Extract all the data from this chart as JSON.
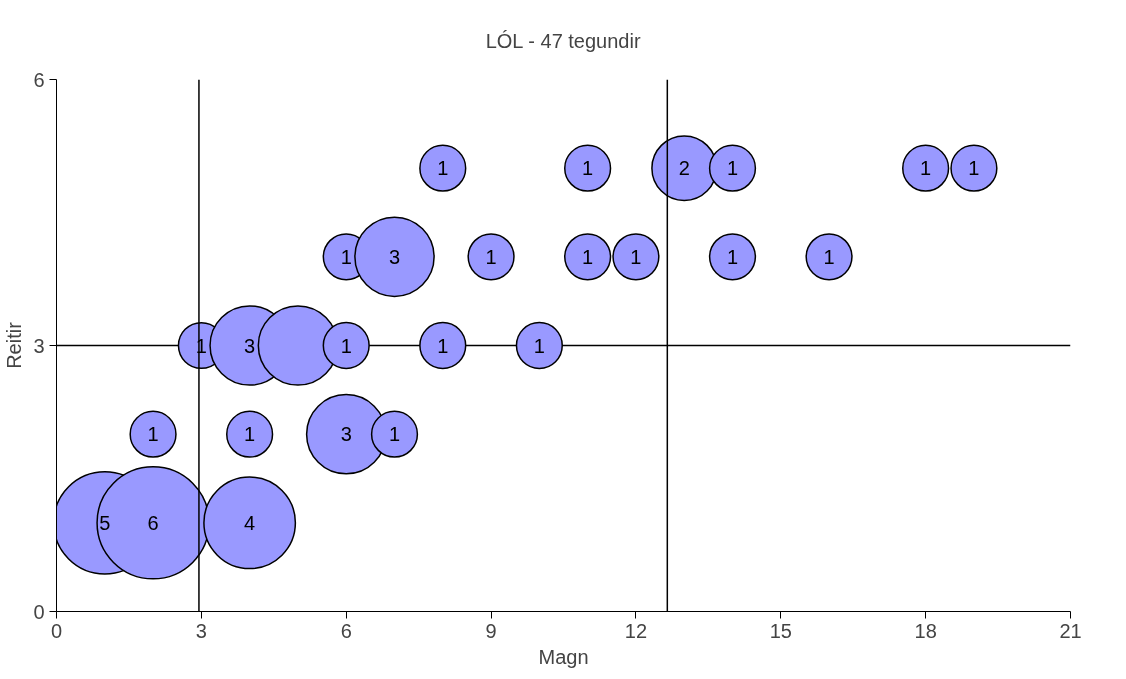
{
  "chart_data": {
    "type": "bubble",
    "title": "LÓL - 47 tegundir",
    "xlabel": "Magn",
    "ylabel": "Reitir",
    "x": [
      1,
      2,
      4,
      2,
      4,
      6,
      7,
      3,
      4,
      5,
      6,
      8,
      10,
      6,
      7,
      9,
      11,
      12,
      14,
      16,
      8,
      11,
      13,
      14,
      18,
      19
    ],
    "values": [
      1,
      1,
      1,
      2,
      2,
      2,
      2,
      3,
      3,
      3,
      3,
      3,
      3,
      4,
      4,
      4,
      4,
      4,
      4,
      4,
      5,
      5,
      5,
      5,
      5,
      5
    ],
    "sizes": [
      0.833,
      1,
      0.667,
      0.167,
      0.167,
      0.5,
      0.167,
      0.167,
      0.5,
      0.5,
      0.167,
      0.167,
      0.167,
      0.167,
      0.5,
      0.167,
      0.167,
      0.167,
      0.167,
      0.167,
      0.167,
      0.167,
      0.333,
      0.167,
      0.167,
      0.167
    ],
    "annotations": [
      {
        "text": "5",
        "x": 1,
        "y": 1
      },
      {
        "text": "6",
        "x": 2,
        "y": 1
      },
      {
        "text": "4",
        "x": 4,
        "y": 1
      },
      {
        "text": "1",
        "x": 2,
        "y": 2
      },
      {
        "text": "1",
        "x": 4,
        "y": 2
      },
      {
        "text": "3",
        "x": 6,
        "y": 2
      },
      {
        "text": "1",
        "x": 7,
        "y": 2
      },
      {
        "text": "1",
        "x": 3,
        "y": 3
      },
      {
        "text": "3",
        "x": 4,
        "y": 3
      },
      {
        "text": "1",
        "x": 6,
        "y": 3
      },
      {
        "text": "1",
        "x": 8,
        "y": 3
      },
      {
        "text": "1",
        "x": 10,
        "y": 3
      },
      {
        "text": "1",
        "x": 6,
        "y": 4
      },
      {
        "text": "3",
        "x": 7,
        "y": 4
      },
      {
        "text": "1",
        "x": 9,
        "y": 4
      },
      {
        "text": "1",
        "x": 11,
        "y": 4
      },
      {
        "text": "1",
        "x": 12,
        "y": 4
      },
      {
        "text": "1",
        "x": 14,
        "y": 4
      },
      {
        "text": "1",
        "x": 16,
        "y": 4
      },
      {
        "text": "1",
        "x": 8,
        "y": 5
      },
      {
        "text": "1",
        "x": 11,
        "y": 5
      },
      {
        "text": "2",
        "x": 13,
        "y": 5
      },
      {
        "text": "1",
        "x": 14,
        "y": 5
      },
      {
        "text": "1",
        "x": 18,
        "y": 5
      },
      {
        "text": "1",
        "x": 19,
        "y": 5
      }
    ],
    "color": "#9999ff",
    "xlim": [
      0,
      21
    ],
    "xticks": [
      0,
      3,
      6,
      9,
      12,
      15,
      18,
      21
    ],
    "ylim": [
      0,
      6
    ],
    "yticks": [
      0,
      3,
      6
    ],
    "grid": "y",
    "ref_lines": [
      {
        "axis": "x",
        "value": 2.95,
        "label": null
      },
      {
        "axis": "x",
        "value": 12.65,
        "label": null
      }
    ]
  }
}
